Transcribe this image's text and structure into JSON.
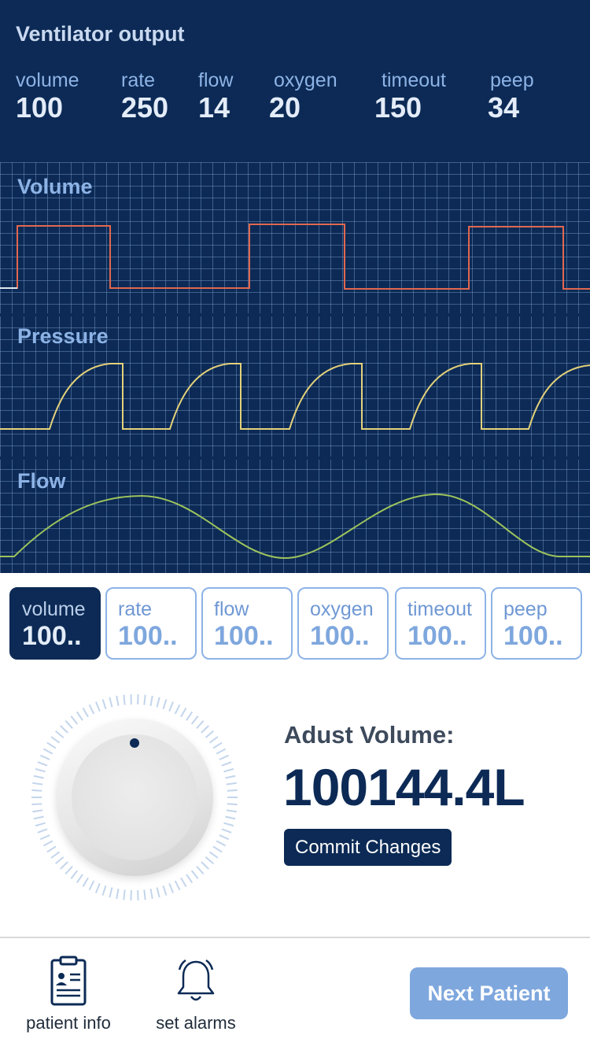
{
  "header": {
    "title": "Ventilator output",
    "stats": [
      {
        "label": "volume",
        "value": "100"
      },
      {
        "label": "rate",
        "value": "250"
      },
      {
        "label": "flow",
        "value": "14"
      },
      {
        "label": "oxygen",
        "value": "20"
      },
      {
        "label": "timeout",
        "value": "150"
      },
      {
        "label": "peep",
        "value": "34"
      }
    ]
  },
  "graphs": {
    "volume": {
      "title": "Volume",
      "color": "#e2674f"
    },
    "pressure": {
      "title": "Pressure",
      "color": "#e4d17a"
    },
    "flow": {
      "title": "Flow",
      "color": "#9dc35d"
    }
  },
  "params": [
    {
      "label": "volume",
      "value": "100..",
      "active": true
    },
    {
      "label": "rate",
      "value": "100..",
      "active": false
    },
    {
      "label": "flow",
      "value": "100..",
      "active": false
    },
    {
      "label": "oxygen",
      "value": "100..",
      "active": false
    },
    {
      "label": "timeout",
      "value": "100..",
      "active": false
    },
    {
      "label": "peep",
      "value": "100..",
      "active": false
    }
  ],
  "adjust": {
    "label": "Adust Volume:",
    "value": "100144.4L",
    "commit_label": "Commit Changes"
  },
  "bottom": {
    "patient_info_label": "patient info",
    "set_alarms_label": "set alarms",
    "next_patient_label": "Next Patient"
  },
  "colors": {
    "primary": "#0c2a55",
    "accent": "#7ea7dd",
    "grid": "#7da0cd"
  }
}
